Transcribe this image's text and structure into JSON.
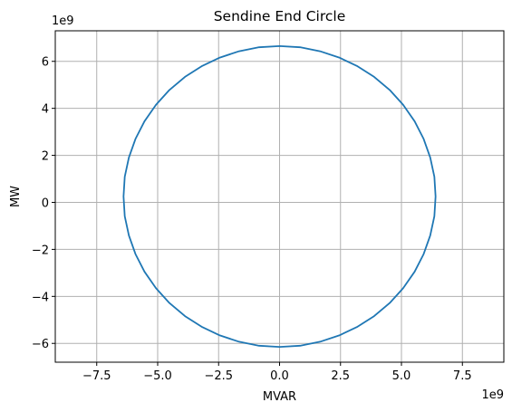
{
  "chart_data": {
    "type": "line",
    "title": "Sendine End Circle",
    "xlabel": "MVAR",
    "ylabel": "MW",
    "x_offset_text": "1e9",
    "y_offset_text": "1e9",
    "xlim": [
      -9.2,
      9.2
    ],
    "ylim": [
      -6.8,
      7.3
    ],
    "x_scale": 1000000000,
    "y_scale": 1000000000,
    "xticks": [
      -7.5,
      -5.0,
      -2.5,
      0.0,
      2.5,
      5.0,
      7.5
    ],
    "xtick_labels": [
      "−7.5",
      "−5.0",
      "−2.5",
      "0.0",
      "2.5",
      "5.0",
      "7.5"
    ],
    "yticks": [
      -6,
      -4,
      -2,
      0,
      2,
      4,
      6
    ],
    "ytick_labels": [
      "−6",
      "−4",
      "−2",
      "0",
      "2",
      "4",
      "6"
    ],
    "grid": true,
    "legend": "none",
    "series": [
      {
        "color": "#1f77b4",
        "shape": "circle",
        "center": [
          0.0,
          0.25
        ],
        "radius": 6.4,
        "x": [
          6.4,
          6.35,
          6.18,
          5.91,
          5.54,
          5.07,
          4.52,
          3.88,
          3.2,
          2.45,
          1.66,
          0.84,
          0.0,
          -0.84,
          -1.66,
          -2.45,
          -3.2,
          -3.88,
          -4.52,
          -5.07,
          -5.54,
          -5.91,
          -6.18,
          -6.35,
          -6.4,
          -6.35,
          -6.18,
          -5.91,
          -5.54,
          -5.07,
          -4.52,
          -3.88,
          -3.2,
          -2.45,
          -1.66,
          -0.84,
          0.0,
          0.84,
          1.66,
          2.45,
          3.2,
          3.88,
          4.52,
          5.07,
          5.54,
          5.91,
          6.18,
          6.35,
          6.4
        ],
        "y": [
          0.25,
          1.09,
          1.91,
          2.7,
          3.45,
          4.15,
          4.78,
          5.34,
          5.79,
          6.16,
          6.43,
          6.6,
          6.65,
          6.6,
          6.43,
          6.16,
          5.79,
          5.34,
          4.78,
          4.15,
          3.45,
          2.7,
          1.91,
          1.09,
          0.25,
          -0.59,
          -1.41,
          -2.2,
          -2.95,
          -3.65,
          -4.28,
          -4.84,
          -5.29,
          -5.66,
          -5.93,
          -6.1,
          -6.15,
          -6.1,
          -5.93,
          -5.66,
          -5.29,
          -4.84,
          -4.28,
          -3.65,
          -2.95,
          -2.2,
          -1.41,
          -0.59,
          0.25
        ]
      }
    ]
  }
}
